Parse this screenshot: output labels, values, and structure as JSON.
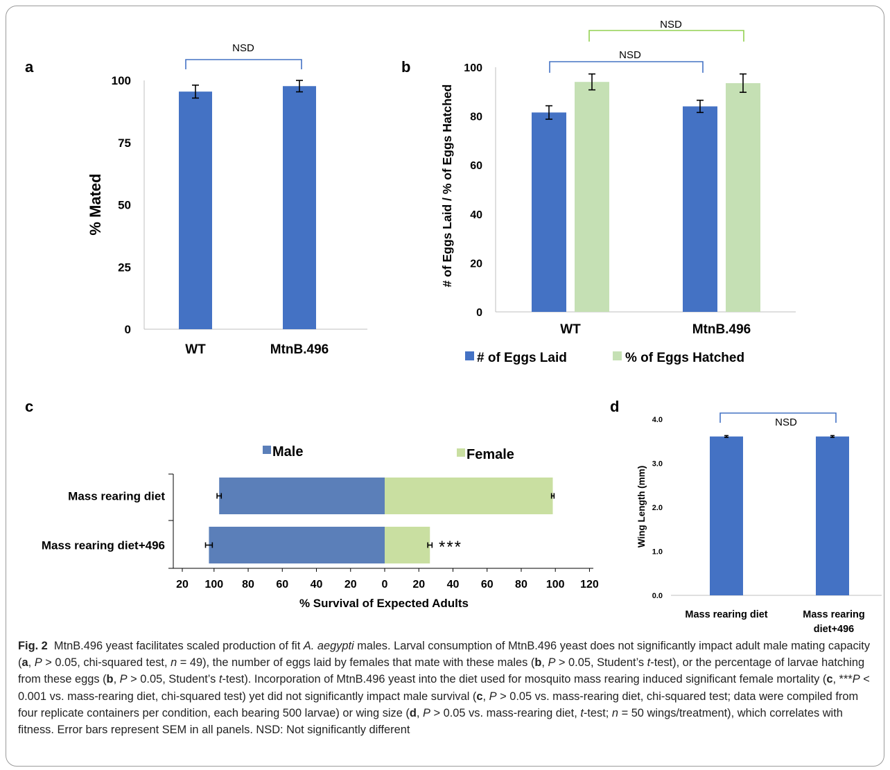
{
  "panels": {
    "a": {
      "letter": "a"
    },
    "b": {
      "letter": "b"
    },
    "c": {
      "letter": "c"
    },
    "d": {
      "letter": "d"
    }
  },
  "colors": {
    "blue": "#4472C4",
    "light_green": "#C5E0B4",
    "c_male": "#5B7FB9",
    "c_female": "#C9DFA1",
    "bracket_blue": "#4472C4",
    "bracket_green": "#92D050",
    "text": "#000000"
  },
  "chart_data": [
    {
      "panel": "a",
      "type": "bar",
      "categories": [
        "WT",
        "MtnB.496"
      ],
      "values": [
        95.5,
        97.7
      ],
      "errors": [
        5.2,
        4.6
      ],
      "ylabel": "% Mated",
      "ylim": [
        0,
        100
      ],
      "yticks": [
        0,
        25,
        50,
        75,
        100
      ],
      "annotations": [
        {
          "text": "NSD",
          "between": [
            "WT",
            "MtnB.496"
          ]
        }
      ]
    },
    {
      "panel": "b",
      "type": "bar",
      "categories": [
        "WT",
        "MtnB.496"
      ],
      "series": [
        {
          "name": "# of Eggs Laid",
          "values": [
            81.5,
            84
          ],
          "errors": [
            5.5,
            5
          ]
        },
        {
          "name": "% of Eggs Hatched",
          "values": [
            94,
            93.5
          ],
          "errors": [
            6.5,
            7.5
          ]
        }
      ],
      "ylabel": "# of Eggs Laid / % of Eggs Hatched",
      "ylim": [
        0,
        100
      ],
      "yticks": [
        0,
        20,
        40,
        60,
        80,
        100
      ],
      "legend": "bottom",
      "annotations": [
        {
          "text": "NSD",
          "series": "# of Eggs Laid"
        },
        {
          "text": "NSD",
          "series": "% of Eggs Hatched"
        }
      ]
    },
    {
      "panel": "c",
      "type": "bar",
      "orientation": "horizontal",
      "categories": [
        "Mass rearing diet",
        "Mass rearing diet+496"
      ],
      "series": [
        {
          "name": "Male",
          "values": [
            97,
            103
          ],
          "errors": [
            2.5,
            4
          ]
        },
        {
          "name": "Female",
          "values": [
            98.5,
            26.5
          ],
          "errors": [
            1.5,
            2.5
          ]
        }
      ],
      "xlabel": "% Survival of Expected Adults",
      "xticks": [
        "20",
        "100",
        "80",
        "60",
        "40",
        "20",
        "0",
        "20",
        "40",
        "60",
        "80",
        "100",
        "120"
      ],
      "legend": "top",
      "annotations": [
        {
          "text": "***",
          "category": "Mass rearing diet+496"
        }
      ]
    },
    {
      "panel": "d",
      "type": "bar",
      "categories": [
        "Mass rearing diet",
        "Mass rearing diet+496"
      ],
      "category_lines": [
        [
          "Mass rearing diet"
        ],
        [
          "Mass rearing",
          "diet+496"
        ]
      ],
      "values": [
        3.61,
        3.61
      ],
      "errors": [
        0.02,
        0.02
      ],
      "ylabel": "Wing Length (mm)",
      "ylim": [
        0,
        4
      ],
      "yticks": [
        "0.0",
        "1.0",
        "2.0",
        "3.0",
        "4.0"
      ],
      "annotations": [
        {
          "text": "NSD",
          "between": [
            "Mass rearing diet",
            "Mass rearing diet+496"
          ]
        }
      ]
    }
  ],
  "caption": {
    "label": "Fig. 2",
    "segments": [
      {
        "t": "MtnB.496 yeast facilitates scaled production of fit "
      },
      {
        "t": "A. aegypti",
        "i": true
      },
      {
        "t": " males. Larval consumption of MtnB.496 yeast does not significantly impact adult male mating capacity ("
      },
      {
        "t": "a",
        "b": true
      },
      {
        "t": ", "
      },
      {
        "t": "P",
        "i": true
      },
      {
        "t": " > 0.05, chi-squared test, "
      },
      {
        "t": "n",
        "i": true
      },
      {
        "t": " = 49), the number of eggs laid by females that mate with these males ("
      },
      {
        "t": "b",
        "b": true
      },
      {
        "t": ", "
      },
      {
        "t": "P",
        "i": true
      },
      {
        "t": " > 0.05, Student’s "
      },
      {
        "t": "t",
        "i": true
      },
      {
        "t": "-test), or the percentage of larvae hatching from these eggs ("
      },
      {
        "t": "b",
        "b": true
      },
      {
        "t": ", "
      },
      {
        "t": "P",
        "i": true
      },
      {
        "t": " > 0.05, Student’s "
      },
      {
        "t": "t",
        "i": true
      },
      {
        "t": "-test). Incorporation of MtnB.496 yeast into the diet used for mosquito mass rearing induced significant female mortality ("
      },
      {
        "t": "c",
        "b": true
      },
      {
        "t": ", ***"
      },
      {
        "t": "P",
        "i": true
      },
      {
        "t": " < 0.001 vs. mass-rearing diet, chi-squared test) yet did not significantly impact male survival ("
      },
      {
        "t": "c",
        "b": true
      },
      {
        "t": ", "
      },
      {
        "t": "P",
        "i": true
      },
      {
        "t": " > 0.05 vs. mass-rearing diet, chi-squared test; data were compiled from four replicate containers per condition, each bearing 500 larvae) or wing size ("
      },
      {
        "t": "d",
        "b": true
      },
      {
        "t": ", "
      },
      {
        "t": "P",
        "i": true
      },
      {
        "t": " > 0.05 vs. mass-rearing diet, "
      },
      {
        "t": "t",
        "i": true
      },
      {
        "t": "-test; "
      },
      {
        "t": "n",
        "i": true
      },
      {
        "t": " = 50 wings/treatment), which correlates with fitness. Error bars represent SEM in all panels. NSD: Not significantly different"
      }
    ]
  }
}
